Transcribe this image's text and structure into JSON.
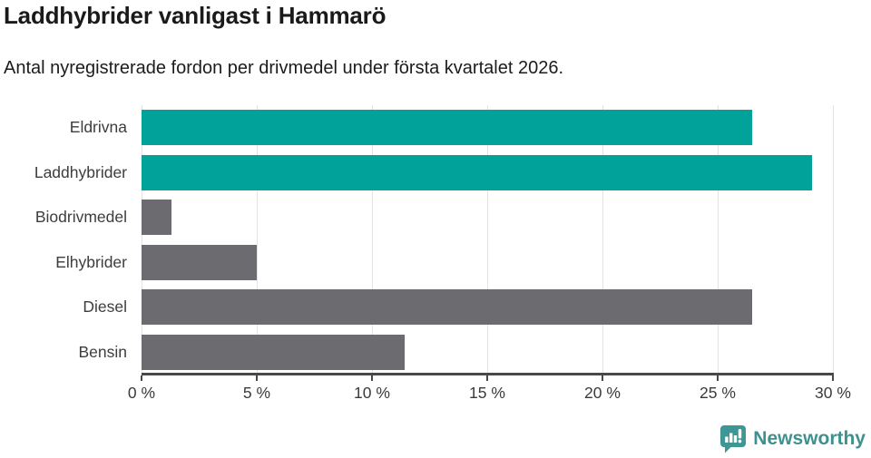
{
  "header": {
    "title": "Laddhybrider vanligast i Hammarö",
    "subtitle": "Antal nyregistrerade fordon per drivmedel under första kvartalet 2026."
  },
  "chart_data": {
    "type": "bar",
    "orientation": "horizontal",
    "title": "Laddhybrider vanligast i Hammarö",
    "subtitle": "Antal nyregistrerade fordon per drivmedel under första kvartalet 2026.",
    "categories": [
      "Eldrivna",
      "Laddhybrider",
      "Biodrivmedel",
      "Elhybrider",
      "Diesel",
      "Bensin"
    ],
    "values": [
      26.5,
      29.1,
      1.3,
      5.0,
      26.5,
      11.4
    ],
    "unit": "%",
    "xlim": [
      0,
      30
    ],
    "x_ticks": [
      0,
      5,
      10,
      15,
      20,
      25,
      30
    ],
    "x_tick_labels": [
      "0 %",
      "5 %",
      "10 %",
      "15 %",
      "20 %",
      "25 %",
      "30 %"
    ],
    "bar_colors": [
      "#00a29a",
      "#00a29a",
      "#6c6b70",
      "#6c6b70",
      "#6c6b70",
      "#6c6b70"
    ],
    "grid": true,
    "legend": "none",
    "xlabel": "",
    "ylabel": ""
  },
  "colors": {
    "teal_bar": "#00a29a",
    "gray_bar": "#6c6b70",
    "gridline": "#e3e3e3",
    "axis": "#47474c",
    "brand": "#3e918e"
  },
  "footer": {
    "brand": "Newsworthy",
    "logo_icon": "newsworthy-speech-bubble-barchart-icon"
  }
}
